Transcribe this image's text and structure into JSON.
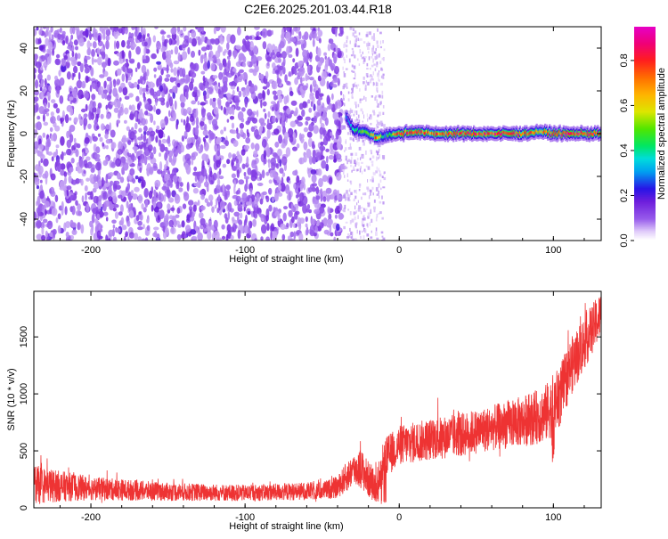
{
  "title": "C2E6.2025.201.03.44.R18",
  "chart_data": [
    {
      "type": "heatmap",
      "xlabel": "Height of straight line (km)",
      "ylabel": "Frequency (Hz)",
      "xlim": [
        -237,
        131
      ],
      "ylim": [
        -50,
        50
      ],
      "xticks": [
        -200,
        -100,
        0,
        100
      ],
      "yticks": [
        -40,
        -20,
        0,
        20,
        40
      ],
      "colorbar": {
        "label": "Normalized spectral amplitude",
        "range": [
          0,
          0.95
        ],
        "ticks": [
          0.0,
          0.2,
          0.4,
          0.6,
          0.8
        ]
      },
      "description_values": {
        "noise_region_x": [
          -237,
          -15
        ],
        "signal_band": [
          {
            "x": -35,
            "freq": 8,
            "amp": 0.3
          },
          {
            "x": -30,
            "freq": 2,
            "amp": 0.45
          },
          {
            "x": -25,
            "freq": 1,
            "amp": 0.55
          },
          {
            "x": -20,
            "freq": 0,
            "amp": 0.6
          },
          {
            "x": -15,
            "freq": -2,
            "amp": 0.9
          },
          {
            "x": -10,
            "freq": -1,
            "amp": 0.4
          },
          {
            "x": 0,
            "freq": 0,
            "amp": 0.9
          },
          {
            "x": 10,
            "freq": 1,
            "amp": 0.85
          },
          {
            "x": 20,
            "freq": 0,
            "amp": 0.8
          },
          {
            "x": 40,
            "freq": 0,
            "amp": 0.9
          },
          {
            "x": 60,
            "freq": 0,
            "amp": 0.9
          },
          {
            "x": 80,
            "freq": 0,
            "amp": 0.9
          },
          {
            "x": 90,
            "freq": 1,
            "amp": 0.7
          },
          {
            "x": 100,
            "freq": 0,
            "amp": 0.9
          },
          {
            "x": 120,
            "freq": 0,
            "amp": 0.95
          },
          {
            "x": 131,
            "freq": 0,
            "amp": 0.9
          }
        ]
      }
    },
    {
      "type": "line",
      "xlabel": "Height of straight line (km)",
      "ylabel": "SNR (10 * v/v)",
      "xlim": [
        -237,
        131
      ],
      "ylim": [
        0,
        1900
      ],
      "xticks": [
        -200,
        -100,
        0,
        100
      ],
      "yticks": [
        0,
        500,
        1000,
        1500
      ],
      "series": [
        {
          "color": "#ee3333",
          "envelope": {
            "x": [
              -237,
              -220,
              -200,
              -150,
              -100,
              -50,
              -40,
              -35,
              -30,
              -25,
              -20,
              -15,
              -10,
              0,
              20,
              40,
              60,
              80,
              90,
              95,
              100,
              105,
              110,
              120,
              131
            ],
            "y": [
              200,
              190,
              170,
              140,
              130,
              150,
              180,
              260,
              330,
              350,
              250,
              180,
              420,
              550,
              600,
              640,
              700,
              760,
              800,
              830,
              900,
              1000,
              1200,
              1450,
              1700
            ],
            "spread": [
              220,
              170,
              130,
              100,
              90,
              100,
              120,
              160,
              180,
              220,
              200,
              170,
              230,
              220,
              230,
              240,
              250,
              280,
              300,
              320,
              340,
              340,
              320,
              300,
              250
            ]
          }
        }
      ]
    }
  ]
}
